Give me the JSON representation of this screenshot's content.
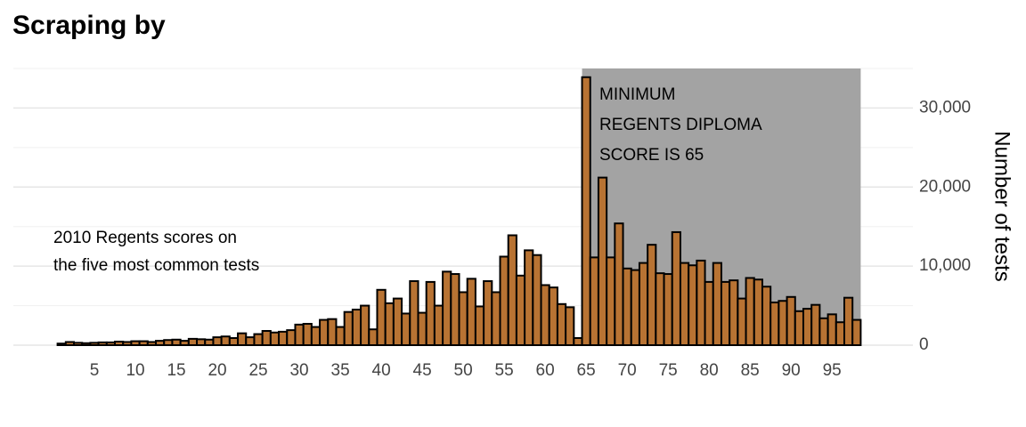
{
  "chart_data": {
    "type": "histogram",
    "title": "Scraping by",
    "annotation_left": [
      "2010 Regents scores on",
      "the five most common tests"
    ],
    "annotation_right": [
      "MINIMUM",
      "REGENTS DIPLOMA",
      "SCORE IS 65"
    ],
    "y_label": "Number of tests",
    "bins": [
      0.5,
      1.5,
      2.5,
      3.5,
      4.5,
      5.5,
      6.5,
      7.5,
      8.5,
      9.5,
      10.5,
      11.5,
      12.5,
      13.5,
      14.5,
      15.5,
      16.5,
      17.5,
      18.5,
      19.5,
      20.5,
      21.5,
      22.5,
      23.5,
      24.5,
      25.5,
      26.5,
      27.5,
      28.5,
      29.5,
      30.5,
      31.5,
      32.5,
      33.5,
      34.5,
      35.5,
      36.5,
      37.5,
      38.5,
      39.5,
      40.5,
      41.5,
      42.5,
      43.5,
      44.5,
      45.5,
      46.5,
      47.5,
      48.5,
      49.5,
      50.5,
      51.5,
      52.5,
      53.5,
      54.5,
      55.5,
      56.5,
      57.5,
      58.5,
      59.5,
      60.5,
      61.5,
      62.5,
      63.5,
      64.5,
      65.5,
      66.5,
      67.5,
      68.5,
      69.5,
      70.5,
      71.5,
      72.5,
      73.5,
      74.5,
      75.5,
      76.5,
      77.5,
      78.5,
      79.5,
      80.5,
      81.5,
      82.5,
      83.5,
      84.5,
      85.5,
      86.5,
      87.5,
      88.5,
      89.5,
      90.5,
      91.5,
      92.5,
      93.5,
      94.5,
      95.5,
      96.5,
      97.5,
      98.5
    ],
    "counts": [
      200,
      400,
      300,
      250,
      300,
      350,
      350,
      450,
      400,
      500,
      500,
      400,
      550,
      650,
      700,
      550,
      800,
      750,
      700,
      1000,
      1100,
      900,
      1500,
      1000,
      1400,
      1800,
      1600,
      1700,
      1900,
      2600,
      2700,
      2300,
      3200,
      3300,
      2300,
      4200,
      4500,
      5000,
      2000,
      7000,
      5300,
      5900,
      4000,
      8100,
      4100,
      8000,
      5000,
      9300,
      9000,
      6700,
      8400,
      4900,
      8100,
      6700,
      11200,
      13900,
      8800,
      12000,
      11400,
      7600,
      7300,
      5200,
      4800,
      900,
      33900,
      11100,
      21200,
      11100,
      15400,
      9700,
      9500,
      10400,
      12700,
      9100,
      9000,
      14300,
      10400,
      10100,
      10700,
      8000,
      10400,
      8000,
      8200,
      5900,
      8500,
      8300,
      7400,
      5400,
      5600,
      6100,
      4300,
      4600,
      5100,
      3400,
      3900,
      2900,
      6000,
      3200
    ],
    "color": "#b87333",
    "highlight_range": [
      64.5,
      98.5
    ],
    "highlight_color": "#a3a3a3",
    "xlim": [
      0,
      99
    ],
    "xticks": [
      5,
      10,
      15,
      20,
      25,
      30,
      35,
      40,
      45,
      50,
      55,
      60,
      65,
      70,
      75,
      80,
      85,
      90,
      95
    ],
    "ylim": [
      0,
      35000
    ],
    "yticks": [
      0,
      {
        "value": 10000,
        "label": "10,000"
      },
      {
        "value": 20000,
        "label": "20,000"
      },
      {
        "value": 30000,
        "label": "30,000"
      }
    ],
    "minor_yticks": [
      5000,
      15000,
      25000,
      35000
    ],
    "grid": true,
    "y_axis_side": "right"
  }
}
